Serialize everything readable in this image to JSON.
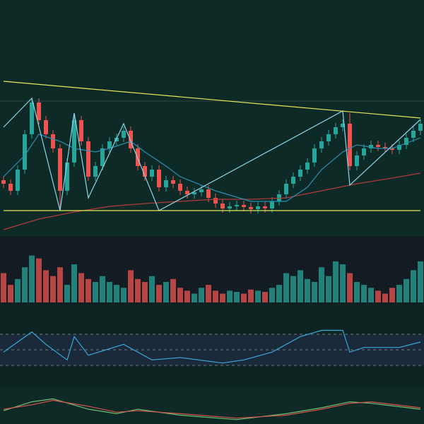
{
  "chart_data": [
    {
      "type": "candlestick",
      "ylim": [
        -20,
        310
      ],
      "up_color": "#26a69a",
      "down_color": "#ef5350",
      "open": [
        55,
        50,
        40,
        70,
        120,
        165,
        140,
        120,
        100,
        40,
        80,
        140,
        110,
        60,
        75,
        100,
        110,
        115,
        125,
        100,
        75,
        60,
        70,
        45,
        55,
        50,
        40,
        35,
        38,
        42,
        30,
        22,
        15,
        18,
        20,
        17,
        14,
        18,
        15,
        25,
        35,
        50,
        60,
        70,
        80,
        100,
        110,
        120,
        130,
        135,
        75,
        90,
        100,
        105,
        102,
        100,
        98,
        105,
        115,
        125
      ],
      "high": [
        61,
        56,
        76,
        126,
        171,
        171,
        146,
        126,
        106,
        86,
        146,
        146,
        116,
        81,
        106,
        116,
        121,
        131,
        131,
        106,
        81,
        76,
        76,
        61,
        61,
        56,
        46,
        44,
        48,
        48,
        36,
        28,
        24,
        26,
        26,
        23,
        24,
        24,
        31,
        41,
        56,
        66,
        76,
        86,
        106,
        116,
        126,
        136,
        141,
        150,
        96,
        106,
        111,
        111,
        108,
        106,
        111,
        121,
        131,
        141
      ],
      "low": [
        44,
        34,
        34,
        64,
        114,
        134,
        114,
        94,
        12,
        34,
        74,
        104,
        54,
        54,
        69,
        94,
        104,
        109,
        94,
        69,
        54,
        54,
        39,
        39,
        44,
        34,
        29,
        29,
        32,
        24,
        16,
        9,
        9,
        12,
        11,
        8,
        8,
        9,
        9,
        19,
        29,
        44,
        54,
        64,
        74,
        94,
        104,
        114,
        124,
        69,
        69,
        84,
        94,
        96,
        94,
        92,
        92,
        99,
        109,
        119
      ],
      "close": [
        50,
        40,
        70,
        120,
        165,
        140,
        120,
        100,
        40,
        80,
        140,
        110,
        60,
        75,
        100,
        110,
        115,
        125,
        100,
        75,
        60,
        70,
        45,
        55,
        50,
        40,
        35,
        38,
        42,
        30,
        22,
        15,
        18,
        20,
        17,
        14,
        18,
        15,
        25,
        35,
        50,
        60,
        70,
        80,
        100,
        110,
        120,
        130,
        135,
        75,
        90,
        100,
        105,
        102,
        100,
        98,
        105,
        115,
        125,
        135
      ],
      "series": [
        {
          "color": "#b23a3a",
          "x": [
            0,
            5,
            10,
            15,
            20,
            25,
            30,
            35,
            40,
            45,
            50,
            55,
            59
          ],
          "values": [
            -15,
            0,
            10,
            18,
            22,
            25,
            28,
            28,
            30,
            40,
            50,
            58,
            65
          ]
        },
        {
          "color": "#2a8fb0",
          "x": [
            0,
            3,
            5,
            8,
            10,
            13,
            15,
            18,
            20,
            23,
            25,
            30,
            35,
            40,
            43,
            45,
            48,
            50,
            53,
            55,
            59
          ],
          "values": [
            60,
            90,
            120,
            110,
            100,
            95,
            100,
            110,
            95,
            75,
            60,
            40,
            25,
            25,
            45,
            70,
            95,
            105,
            100,
            100,
            115
          ]
        },
        {
          "color": "#8fd3e8",
          "x": [
            0,
            4,
            8,
            10,
            12,
            17,
            22,
            48,
            49,
            59
          ],
          "values": [
            130,
            171,
            12,
            150,
            30,
            135,
            12,
            153,
            48,
            141
          ]
        },
        {
          "color": "#e6e65a",
          "x": [
            0,
            59
          ],
          "values": [
            195,
            143
          ]
        },
        {
          "color": "#e6e65a",
          "x": [
            0,
            59
          ],
          "values": [
            12,
            12
          ]
        }
      ]
    },
    {
      "type": "bar",
      "ylim": [
        0,
        100
      ],
      "values": [
        50,
        30,
        40,
        60,
        80,
        75,
        55,
        45,
        60,
        30,
        65,
        50,
        40,
        35,
        45,
        35,
        30,
        25,
        55,
        40,
        35,
        45,
        30,
        35,
        40,
        25,
        20,
        15,
        25,
        30,
        20,
        15,
        20,
        18,
        15,
        22,
        20,
        18,
        25,
        30,
        50,
        45,
        55,
        40,
        35,
        60,
        45,
        70,
        65,
        50,
        35,
        30,
        25,
        20,
        15,
        25,
        30,
        40,
        55,
        70
      ]
    },
    {
      "type": "line",
      "ylim": [
        0,
        100
      ],
      "yticks": [
        30,
        50,
        70
      ],
      "series": [
        {
          "color": "#3aa6d8",
          "x": [
            0,
            4,
            6,
            9,
            10,
            12,
            17,
            21,
            25,
            31,
            34,
            38,
            42,
            45,
            48,
            49,
            51,
            56,
            59
          ],
          "values": [
            47,
            73,
            57,
            37,
            67,
            43,
            57,
            37,
            40,
            33,
            37,
            47,
            67,
            75,
            75,
            47,
            53,
            53,
            60
          ]
        }
      ]
    },
    {
      "type": "line",
      "ylim": [
        -10,
        10
      ],
      "series": [
        {
          "color": "#6fbf73",
          "x": [
            0,
            4,
            7,
            12,
            16,
            19,
            25,
            33,
            40,
            45,
            49,
            52,
            59
          ],
          "values": [
            -2,
            4,
            6,
            -1,
            -4,
            -1,
            -5,
            -8,
            -4,
            0,
            4,
            3,
            -1
          ]
        },
        {
          "color": "#d9534f",
          "x": [
            0,
            4,
            7,
            12,
            16,
            19,
            25,
            33,
            40,
            45,
            49,
            52,
            59
          ],
          "values": [
            -1,
            2,
            5,
            1,
            -3,
            -2,
            -4,
            -7,
            -5,
            -1,
            3,
            4,
            0
          ]
        }
      ]
    }
  ]
}
